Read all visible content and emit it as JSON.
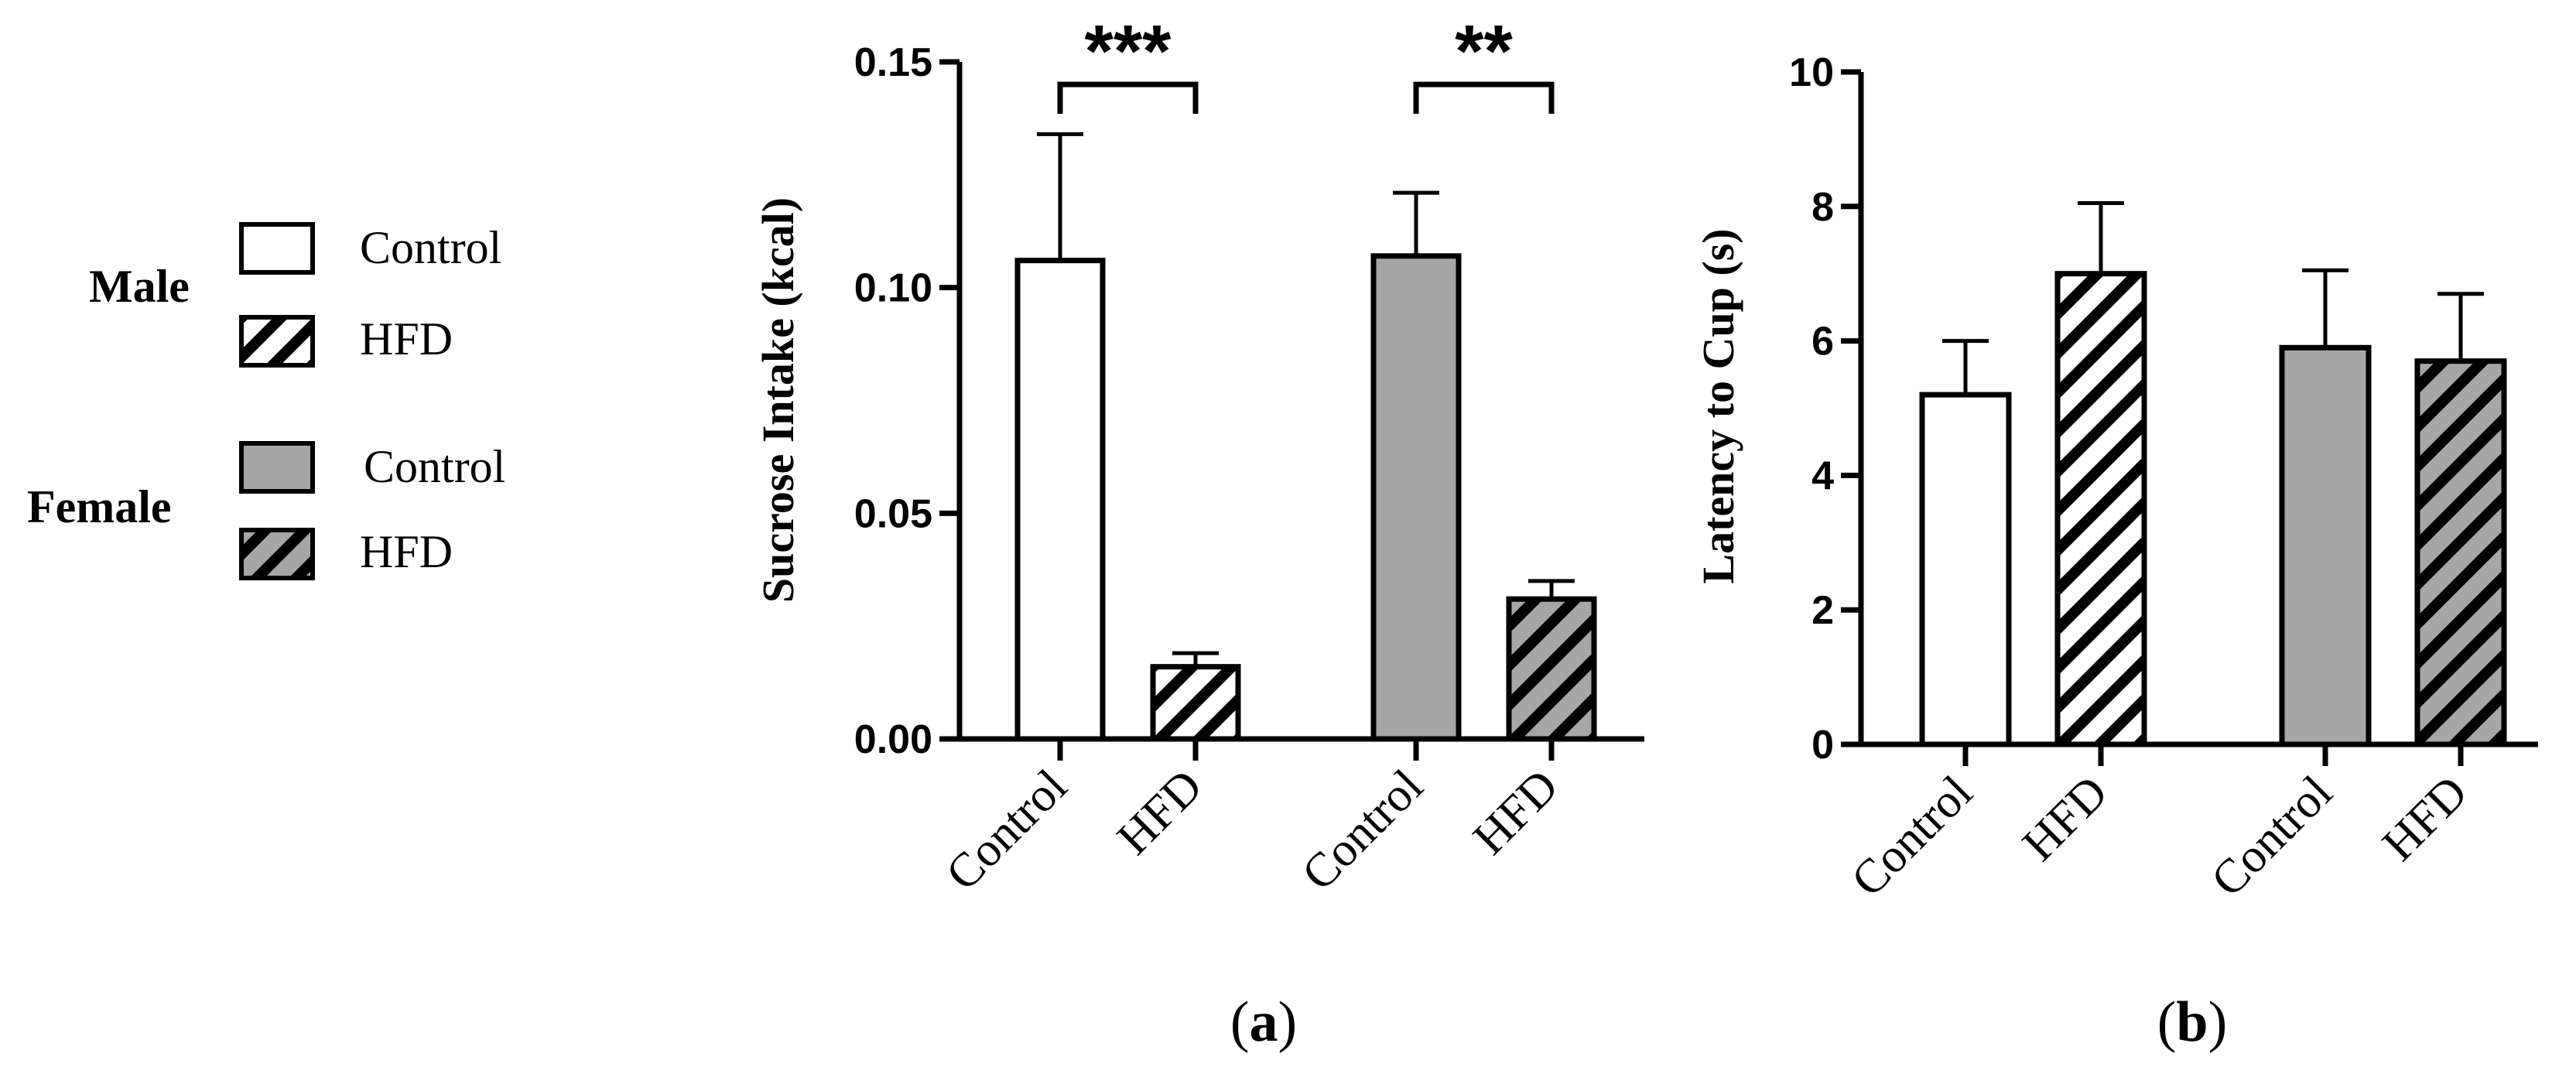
{
  "legend": {
    "groups": [
      {
        "name": "Male",
        "entries": [
          {
            "label": "Control",
            "fill": "#ffffff",
            "hatched": false
          },
          {
            "label": "HFD",
            "fill": "#ffffff",
            "hatched": true
          }
        ]
      },
      {
        "name": "Female",
        "entries": [
          {
            "label": "Control",
            "fill": "#a6a6a6",
            "hatched": false
          },
          {
            "label": "HFD",
            "fill": "#a6a6a6",
            "hatched": true
          }
        ]
      }
    ]
  },
  "colors": {
    "male": "#ffffff",
    "female": "#a6a6a6",
    "stroke": "#000000"
  },
  "chart_data": [
    {
      "type": "bar",
      "panel_label": "a",
      "ylabel": "Sucrose Intake (kcal)",
      "ylim": [
        0,
        0.15
      ],
      "yticks": [
        "0.00",
        "0.05",
        "0.10",
        "0.15"
      ],
      "ytick_values": [
        0,
        0.05,
        0.1,
        0.15
      ],
      "categories": [
        "Control",
        "HFD",
        "Control",
        "HFD"
      ],
      "groups": [
        "Male",
        "Male",
        "Female",
        "Female"
      ],
      "values": [
        0.106,
        0.016,
        0.107,
        0.031
      ],
      "errors": [
        0.028,
        0.003,
        0.014,
        0.004
      ],
      "significance": [
        {
          "from": 0,
          "to": 1,
          "label": "***",
          "y": 0.145
        },
        {
          "from": 2,
          "to": 3,
          "label": "**",
          "y": 0.145
        }
      ]
    },
    {
      "type": "bar",
      "panel_label": "b",
      "ylabel": "Latency to Cup (s)",
      "ylim": [
        0,
        10
      ],
      "yticks": [
        "0",
        "2",
        "4",
        "6",
        "8",
        "10"
      ],
      "ytick_values": [
        0,
        2,
        4,
        6,
        8,
        10
      ],
      "categories": [
        "Control",
        "HFD",
        "Control",
        "HFD"
      ],
      "groups": [
        "Male",
        "Male",
        "Female",
        "Female"
      ],
      "values": [
        5.2,
        7.0,
        5.9,
        5.7
      ],
      "errors": [
        0.8,
        1.05,
        1.15,
        1.0
      ],
      "significance": []
    }
  ]
}
